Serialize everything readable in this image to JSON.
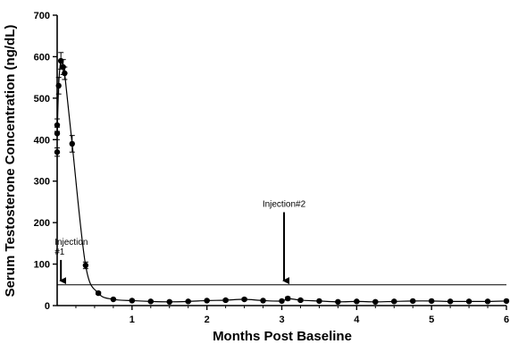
{
  "chart_data": {
    "type": "line",
    "title": "",
    "xlabel": "Months Post Baseline",
    "ylabel": "Serum Testosterone Concentration (ng/dL)",
    "xlim": [
      0,
      6
    ],
    "ylim": [
      0,
      700
    ],
    "x_ticks": [
      1,
      2,
      3,
      4,
      5,
      6
    ],
    "y_ticks": [
      0,
      100,
      200,
      300,
      400,
      500,
      600,
      700
    ],
    "grid": false,
    "legend": "none",
    "reference_line": {
      "y": 50
    },
    "series": [
      {
        "color": "#000000",
        "marker": "circle",
        "x": [
          0.0,
          0.0,
          0.0,
          0.02,
          0.05,
          0.08,
          0.1,
          0.2,
          0.38,
          0.55,
          0.75,
          1.0,
          1.25,
          1.5,
          1.75,
          2.0,
          2.25,
          2.5,
          2.75,
          3.0,
          3.08,
          3.25,
          3.5,
          3.75,
          4.0,
          4.25,
          4.5,
          4.75,
          5.0,
          5.25,
          5.5,
          5.75,
          6.0
        ],
        "y": [
          370,
          415,
          435,
          530,
          590,
          575,
          560,
          390,
          97,
          30,
          15,
          12,
          10,
          9,
          10,
          12,
          13,
          15,
          12,
          11,
          17,
          13,
          11,
          9,
          10,
          9,
          10,
          11,
          11,
          10,
          10,
          10,
          11
        ],
        "error": [
          10,
          15,
          15,
          20,
          20,
          18,
          15,
          20,
          8,
          3,
          2,
          2,
          2,
          2,
          2,
          2,
          3,
          3,
          2,
          2,
          4,
          3,
          2,
          2,
          2,
          2,
          2,
          2,
          2,
          2,
          2,
          2,
          2
        ]
      }
    ],
    "annotations": [
      {
        "text": "Injection\n#1",
        "x": 0.05,
        "arrow_from_y": 110,
        "arrow_to_y": 45
      },
      {
        "text": "Injection#2",
        "x": 3.03,
        "arrow_from_y": 225,
        "arrow_to_y": 45
      }
    ]
  }
}
